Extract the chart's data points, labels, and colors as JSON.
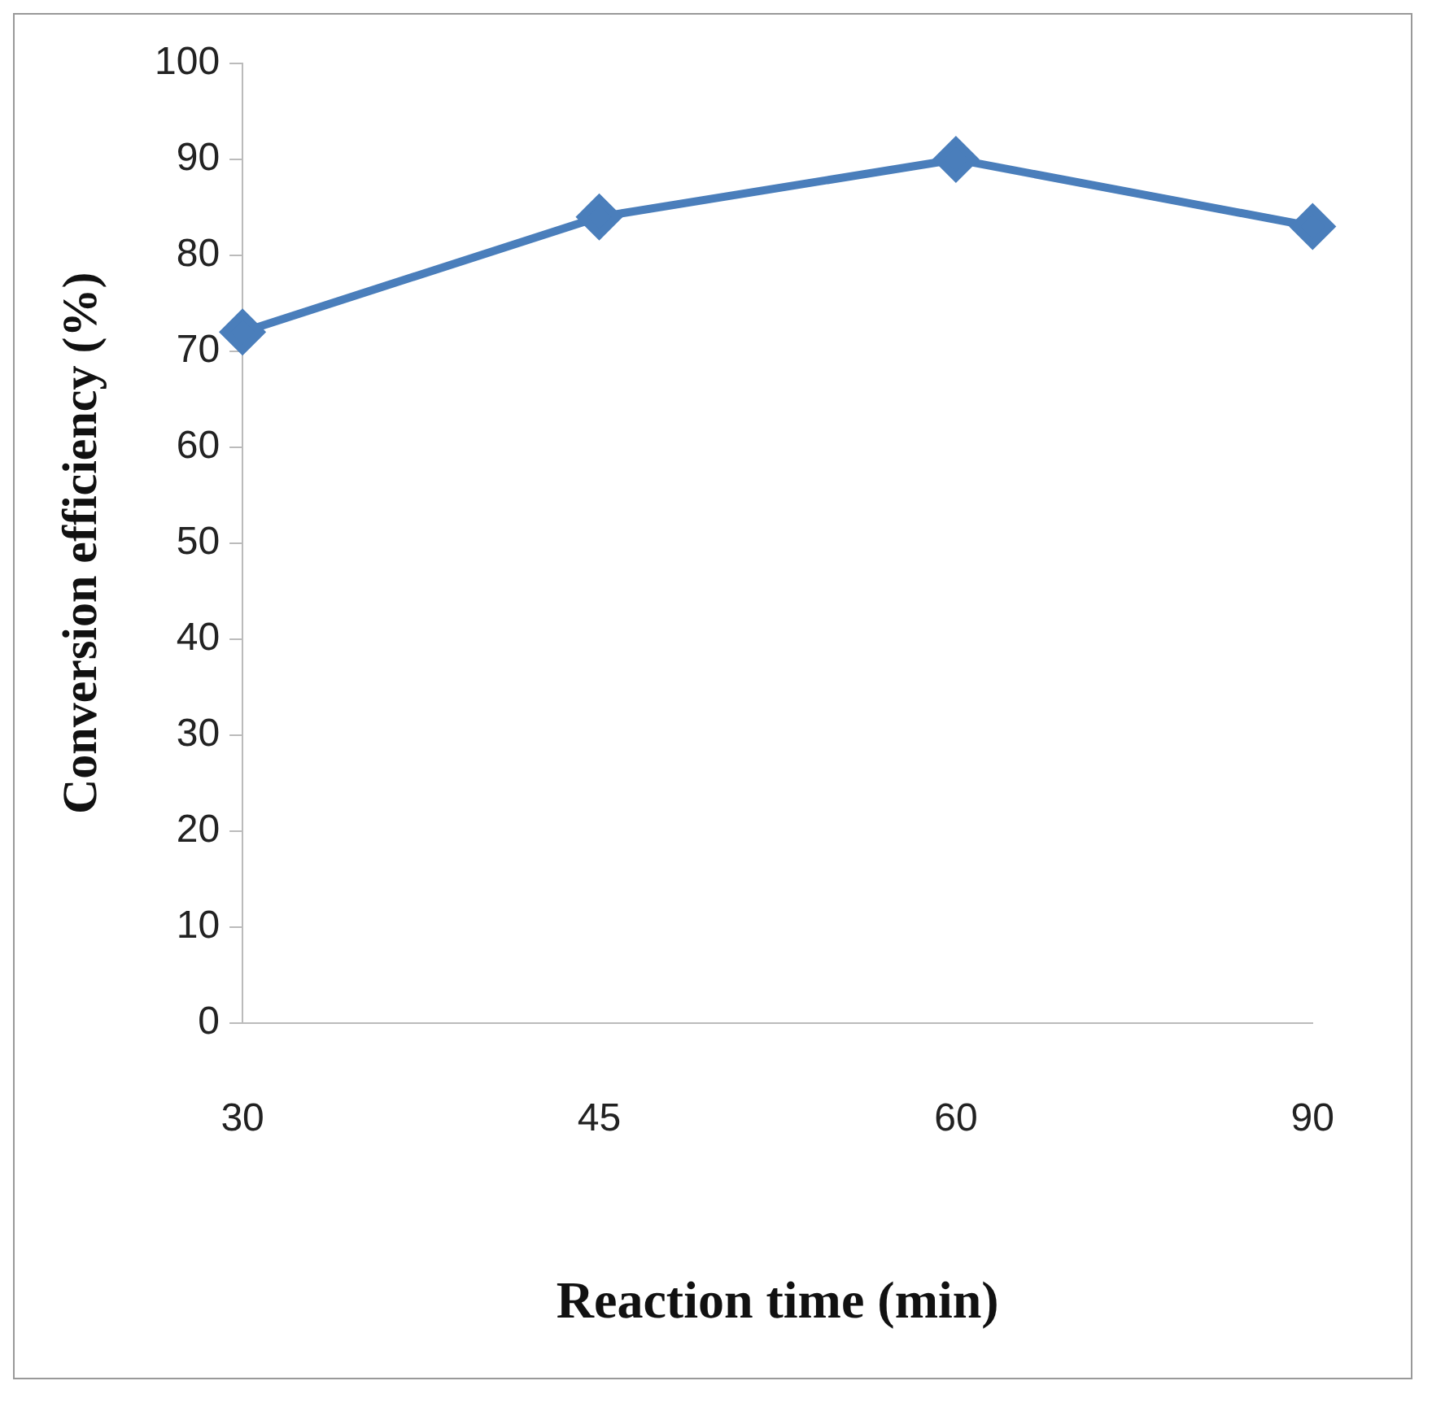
{
  "chart_data": {
    "type": "line",
    "xlabel": "Reaction time (min)",
    "ylabel": "Conversion efficiency (%)",
    "categories": [
      "30",
      "45",
      "60",
      "90"
    ],
    "series": [
      {
        "color": "#4a7ebb",
        "values": [
          72,
          84,
          90,
          83
        ]
      }
    ],
    "ylim": [
      0,
      100
    ],
    "yticks": [
      0,
      10,
      20,
      30,
      40,
      50,
      60,
      70,
      80,
      90,
      100
    ],
    "grid": false,
    "legend": false,
    "marker": "diamond",
    "line_style": "solid"
  }
}
